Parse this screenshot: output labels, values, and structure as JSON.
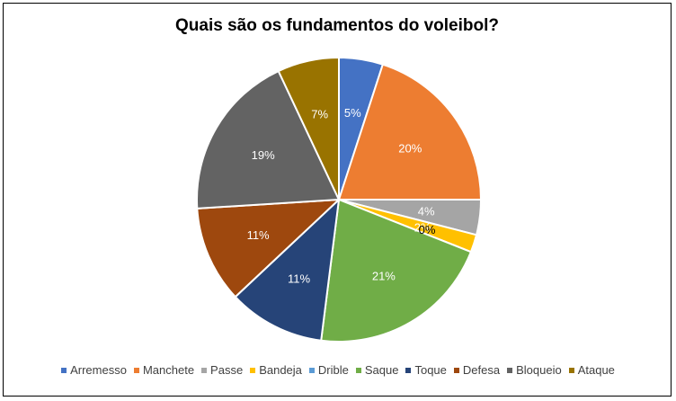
{
  "chart_data": {
    "type": "pie",
    "title": "Quais são os fundamentos do voleibol?",
    "legend_position": "bottom",
    "slices": [
      {
        "label": "Arremesso",
        "value": 5,
        "display": "5%",
        "color": "#4472C4",
        "label_color": "#ffffff"
      },
      {
        "label": "Manchete",
        "value": 20,
        "display": "20%",
        "color": "#ED7D31",
        "label_color": "#ffffff"
      },
      {
        "label": "Passe",
        "value": 4,
        "display": "4%",
        "color": "#A5A5A5",
        "label_color": "#ffffff"
      },
      {
        "label": "Bandeja",
        "value": 2,
        "display": "2%",
        "color": "#FFC000",
        "label_color": "#ffffff"
      },
      {
        "label": "Drible",
        "value": 0,
        "display": "0%",
        "color": "#5B9BD5",
        "label_color": "#000000"
      },
      {
        "label": "Saque",
        "value": 21,
        "display": "21%",
        "color": "#70AD47",
        "label_color": "#ffffff"
      },
      {
        "label": "Toque",
        "value": 11,
        "display": "11%",
        "color": "#264478",
        "label_color": "#ffffff"
      },
      {
        "label": "Defesa",
        "value": 11,
        "display": "11%",
        "color": "#9E480E",
        "label_color": "#ffffff"
      },
      {
        "label": "Bloqueio",
        "value": 19,
        "display": "19%",
        "color": "#636363",
        "label_color": "#ffffff"
      },
      {
        "label": "Ataque",
        "value": 7,
        "display": "7%",
        "color": "#997300",
        "label_color": "#ffffff"
      }
    ]
  }
}
